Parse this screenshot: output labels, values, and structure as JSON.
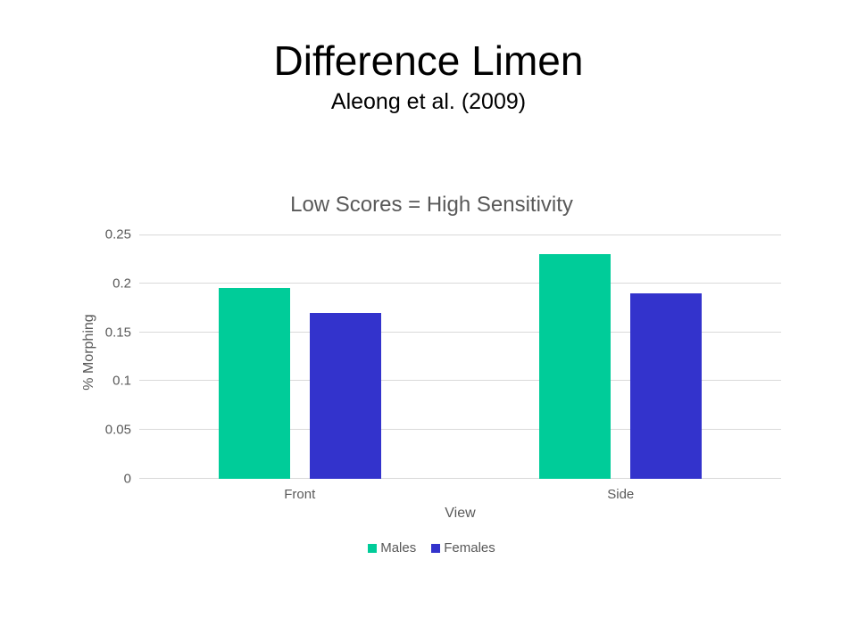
{
  "slide": {
    "title": "Difference Limen",
    "subtitle": "Aleong et al. (2009)"
  },
  "chart_data": {
    "type": "bar",
    "title": "Low Scores = High Sensitivity",
    "xlabel": "View",
    "ylabel": "% Morphing",
    "categories": [
      "Front",
      "Side"
    ],
    "series": [
      {
        "name": "Males",
        "color": "#00CC99",
        "values": [
          0.195,
          0.23
        ]
      },
      {
        "name": "Females",
        "color": "#3333CC",
        "values": [
          0.17,
          0.19
        ]
      }
    ],
    "ylim": [
      0,
      0.25
    ],
    "yticks": [
      "0",
      "0.05",
      "0.1",
      "0.15",
      "0.2",
      "0.25"
    ],
    "grid": "horizontal",
    "legend_position": "bottom",
    "colors": {
      "gridline": "#D9D9D9",
      "axis_text": "#595959",
      "chart_title_text": "#595959",
      "slide_title_text": "#000000",
      "background": "#FFFFFF"
    }
  }
}
